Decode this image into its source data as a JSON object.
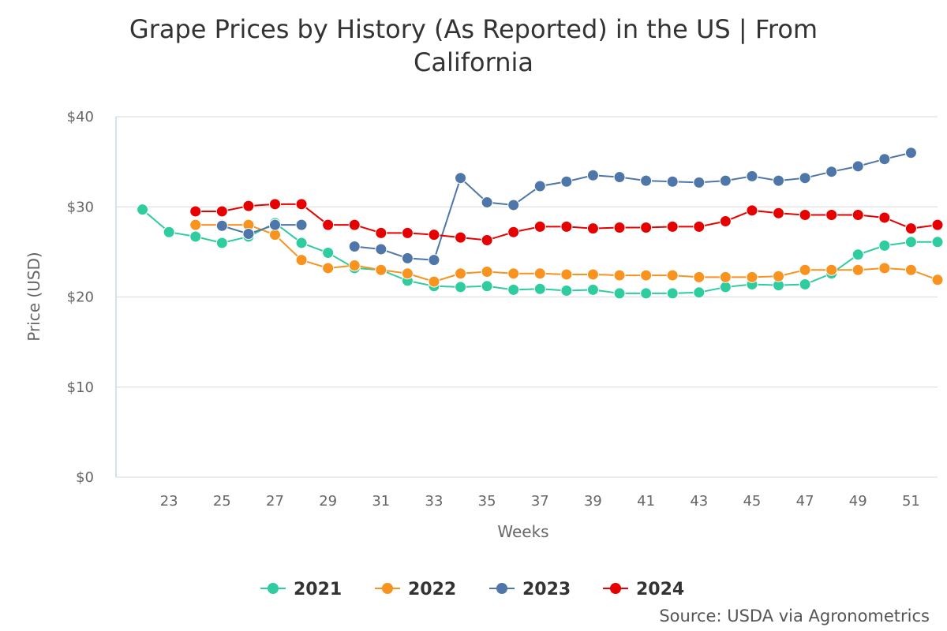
{
  "chart_data": {
    "type": "line",
    "title_lines": [
      "Grape Prices by History (As Reported) in the US | From",
      "California"
    ],
    "xlabel": "Weeks",
    "ylabel": "Price (USD)",
    "xlim": [
      21,
      52
    ],
    "ylim": [
      0,
      40
    ],
    "yticks": [
      0,
      10,
      20,
      30,
      40
    ],
    "ytick_labels": [
      "$0",
      "$10",
      "$20",
      "$30",
      "$40"
    ],
    "xticks": [
      23,
      25,
      27,
      29,
      31,
      33,
      35,
      37,
      39,
      41,
      43,
      45,
      47,
      49,
      51
    ],
    "xtick_labels": [
      "23",
      "25",
      "27",
      "29",
      "31",
      "33",
      "35",
      "37",
      "39",
      "41",
      "43",
      "45",
      "47",
      "49",
      "51"
    ],
    "grid": true,
    "legend_position": "bottom-center",
    "series": [
      {
        "name": "2021",
        "color": "#2ecc9f",
        "points": [
          [
            22,
            29.7
          ],
          [
            23,
            27.2
          ],
          [
            24,
            26.7
          ],
          [
            25,
            26.0
          ],
          [
            26,
            26.7
          ],
          [
            27,
            28.2
          ],
          [
            28,
            26.0
          ],
          [
            29,
            24.9
          ],
          [
            30,
            23.2
          ],
          [
            31,
            23.0
          ],
          [
            32,
            21.8
          ],
          [
            33,
            21.2
          ],
          [
            34,
            21.1
          ],
          [
            35,
            21.2
          ],
          [
            36,
            20.8
          ],
          [
            37,
            20.9
          ],
          [
            38,
            20.7
          ],
          [
            39,
            20.8
          ],
          [
            40,
            20.4
          ],
          [
            41,
            20.4
          ],
          [
            42,
            20.4
          ],
          [
            43,
            20.5
          ],
          [
            44,
            21.1
          ],
          [
            45,
            21.4
          ],
          [
            46,
            21.3
          ],
          [
            47,
            21.4
          ],
          [
            48,
            22.6
          ],
          [
            49,
            24.7
          ],
          [
            50,
            25.7
          ],
          [
            51,
            26.1
          ],
          [
            52,
            26.1
          ]
        ]
      },
      {
        "name": "2022",
        "color": "#f7931e",
        "points": [
          [
            24,
            28.0
          ],
          [
            25,
            28.0
          ],
          [
            26,
            28.0
          ],
          [
            27,
            26.9
          ],
          [
            28,
            24.1
          ],
          [
            29,
            23.2
          ],
          [
            30,
            23.5
          ],
          [
            31,
            23.0
          ],
          [
            32,
            22.6
          ],
          [
            33,
            21.7
          ],
          [
            34,
            22.6
          ],
          [
            35,
            22.8
          ],
          [
            36,
            22.6
          ],
          [
            37,
            22.6
          ],
          [
            38,
            22.5
          ],
          [
            39,
            22.5
          ],
          [
            40,
            22.4
          ],
          [
            41,
            22.4
          ],
          [
            42,
            22.4
          ],
          [
            43,
            22.2
          ],
          [
            44,
            22.2
          ],
          [
            45,
            22.2
          ],
          [
            46,
            22.3
          ],
          [
            47,
            23.0
          ],
          [
            48,
            23.0
          ],
          [
            49,
            23.0
          ],
          [
            50,
            23.2
          ],
          [
            51,
            23.0
          ],
          [
            52,
            21.9
          ]
        ]
      },
      {
        "name": "2023",
        "color": "#4f76a8",
        "points": [
          [
            25,
            27.9
          ],
          [
            26,
            27.0
          ],
          [
            27,
            28.0
          ],
          [
            28,
            28.0
          ],
          [
            30,
            25.6
          ],
          [
            31,
            25.3
          ],
          [
            32,
            24.3
          ],
          [
            33,
            24.1
          ],
          [
            34,
            33.2
          ],
          [
            35,
            30.5
          ],
          [
            36,
            30.2
          ],
          [
            37,
            32.3
          ],
          [
            38,
            32.8
          ],
          [
            39,
            33.5
          ],
          [
            40,
            33.3
          ],
          [
            41,
            32.9
          ],
          [
            42,
            32.8
          ],
          [
            43,
            32.7
          ],
          [
            44,
            32.9
          ],
          [
            45,
            33.4
          ],
          [
            46,
            32.9
          ],
          [
            47,
            33.2
          ],
          [
            48,
            33.9
          ],
          [
            49,
            34.5
          ],
          [
            50,
            35.3
          ],
          [
            51,
            36.0
          ]
        ]
      },
      {
        "name": "2024",
        "color": "#e60000",
        "points": [
          [
            24,
            29.5
          ],
          [
            25,
            29.5
          ],
          [
            26,
            30.1
          ],
          [
            27,
            30.3
          ],
          [
            28,
            30.3
          ],
          [
            29,
            28.0
          ],
          [
            30,
            28.0
          ],
          [
            31,
            27.1
          ],
          [
            32,
            27.1
          ],
          [
            33,
            26.9
          ],
          [
            34,
            26.6
          ],
          [
            35,
            26.3
          ],
          [
            36,
            27.2
          ],
          [
            37,
            27.8
          ],
          [
            38,
            27.8
          ],
          [
            39,
            27.6
          ],
          [
            40,
            27.7
          ],
          [
            41,
            27.7
          ],
          [
            42,
            27.8
          ],
          [
            43,
            27.8
          ],
          [
            44,
            28.4
          ],
          [
            45,
            29.6
          ],
          [
            46,
            29.3
          ],
          [
            47,
            29.1
          ],
          [
            48,
            29.1
          ],
          [
            49,
            29.1
          ],
          [
            50,
            28.8
          ],
          [
            51,
            27.6
          ],
          [
            52,
            28.0
          ]
        ]
      }
    ],
    "source": "Source: USDA via Agronometrics"
  }
}
